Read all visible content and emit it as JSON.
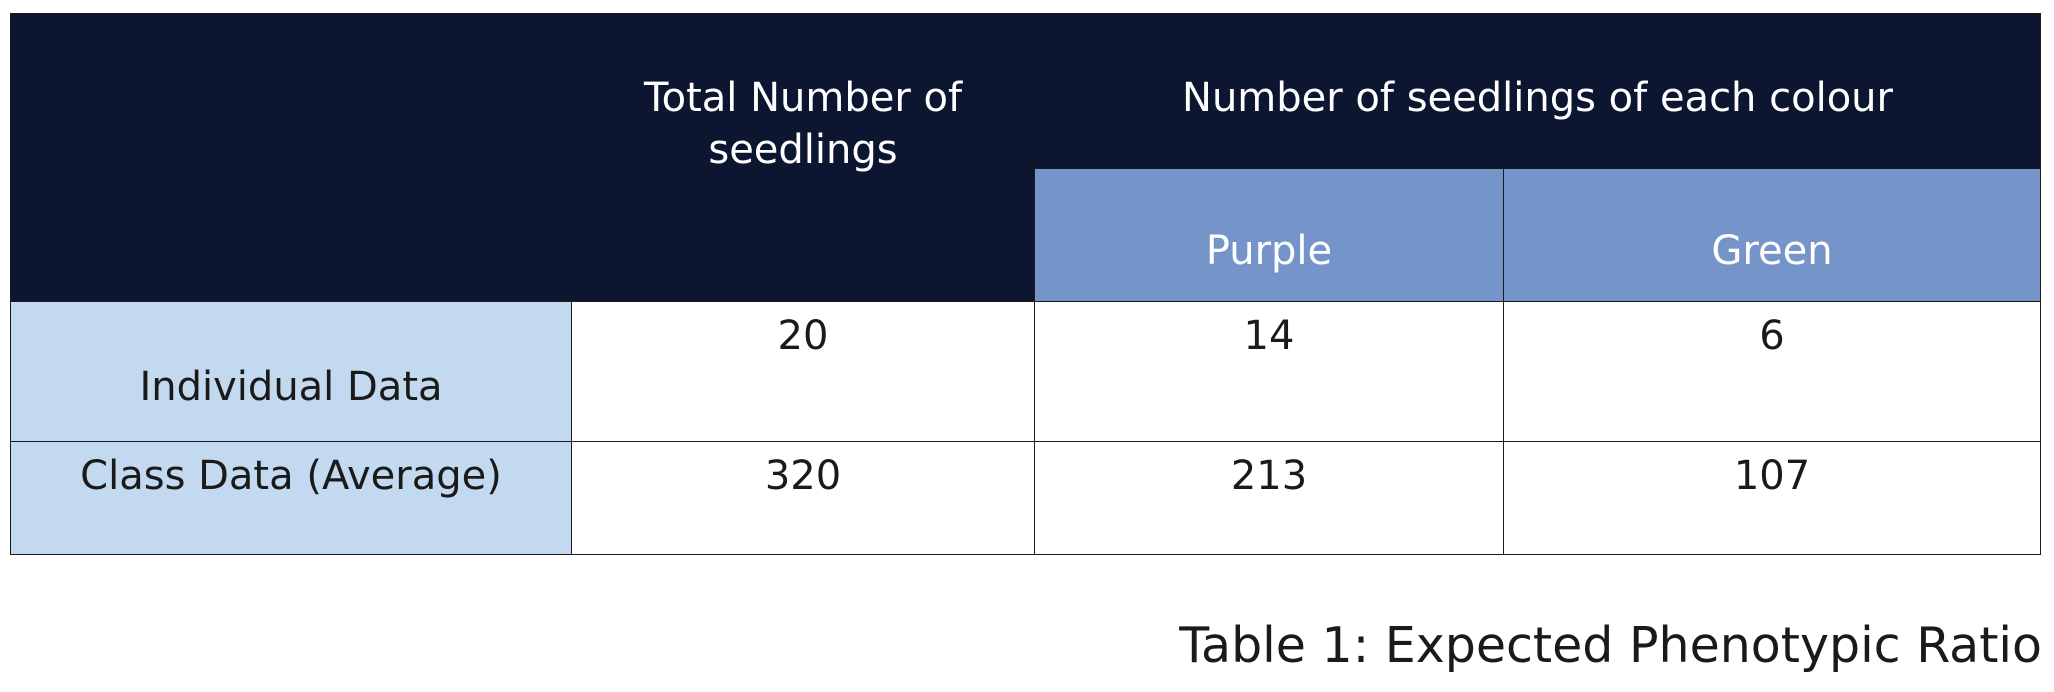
{
  "table": {
    "header": {
      "total_label": "Total Number of seedlings",
      "colour_group_label": "Number of seedlings of each colour",
      "purple_label": "Purple",
      "green_label": "Green"
    },
    "rows": [
      {
        "label": "Individual Data",
        "total": "20",
        "purple": "14",
        "green": "6"
      },
      {
        "label": "Class Data (Average)",
        "total": "320",
        "purple": "213",
        "green": "107"
      }
    ]
  },
  "caption": "Table 1: Expected Phenotypic Ratio",
  "colors": {
    "header_dark": "#0d1631",
    "header_blue": "#7594c9",
    "row_label_bg": "#c3d9ef"
  }
}
